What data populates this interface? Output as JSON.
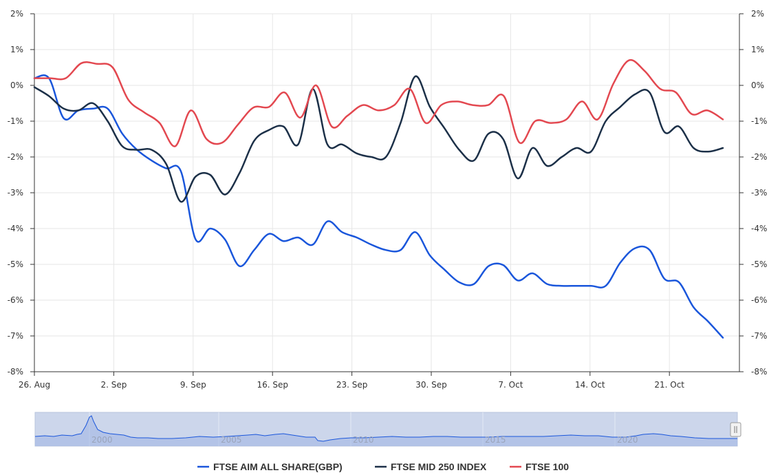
{
  "chart_data": {
    "type": "line",
    "x_tick_labels": [
      "26. Aug",
      "2. Sep",
      "9. Sep",
      "16. Sep",
      "23. Sep",
      "30. Sep",
      "7. Oct",
      "14. Oct",
      "21. Oct"
    ],
    "y_tick_labels": [
      "2%",
      "1%",
      "0%",
      "-1%",
      "-2%",
      "-3%",
      "-4%",
      "-5%",
      "-6%",
      "-7%",
      "-8%"
    ],
    "ylim": [
      -8,
      2
    ],
    "grid": true,
    "legend_position": "bottom-center",
    "series": [
      {
        "name": "FTSE AIM ALL SHARE(GBP)",
        "color": "#1a56db",
        "values": [
          0.2,
          0.2,
          -0.92,
          -0.7,
          -0.65,
          -0.65,
          -1.35,
          -1.8,
          -2.1,
          -2.32,
          -2.4,
          -4.3,
          -4.0,
          -4.3,
          -5.05,
          -4.6,
          -4.15,
          -4.35,
          -4.25,
          -4.45,
          -3.8,
          -4.1,
          -4.25,
          -4.45,
          -4.6,
          -4.6,
          -4.1,
          -4.75,
          -5.15,
          -5.5,
          -5.55,
          -5.05,
          -5.02,
          -5.45,
          -5.25,
          -5.55,
          -5.6,
          -5.6,
          -5.6,
          -5.6,
          -4.95,
          -4.55,
          -4.6,
          -5.4,
          -5.5,
          -6.2,
          -6.6,
          -7.05
        ]
      },
      {
        "name": "FTSE MID 250 INDEX",
        "color": "#1c3048",
        "values": [
          -0.05,
          -0.3,
          -0.65,
          -0.7,
          -0.5,
          -1.0,
          -1.7,
          -1.8,
          -1.8,
          -2.2,
          -3.25,
          -2.55,
          -2.5,
          -3.05,
          -2.45,
          -1.55,
          -1.25,
          -1.15,
          -1.65,
          -0.1,
          -1.65,
          -1.65,
          -1.9,
          -2.0,
          -2.0,
          -1.05,
          0.25,
          -0.6,
          -1.2,
          -1.8,
          -2.1,
          -1.35,
          -1.5,
          -2.6,
          -1.75,
          -2.25,
          -2.0,
          -1.75,
          -1.85,
          -1.0,
          -0.6,
          -0.25,
          -0.2,
          -1.3,
          -1.15,
          -1.75,
          -1.85,
          -1.75
        ]
      },
      {
        "name": "FTSE 100",
        "color": "#e34850",
        "values": [
          0.2,
          0.2,
          0.2,
          0.62,
          0.6,
          0.5,
          -0.4,
          -0.75,
          -1.05,
          -1.7,
          -0.7,
          -1.5,
          -1.6,
          -1.1,
          -0.62,
          -0.6,
          -0.2,
          -0.9,
          0.0,
          -1.15,
          -0.85,
          -0.55,
          -0.7,
          -0.55,
          -0.1,
          -1.05,
          -0.55,
          -0.45,
          -0.55,
          -0.55,
          -0.3,
          -1.6,
          -1.0,
          -1.05,
          -0.95,
          -0.45,
          -0.95,
          0.05,
          0.7,
          0.4,
          -0.1,
          -0.2,
          -0.8,
          -0.7,
          -0.95
        ]
      }
    ],
    "navigator": {
      "year_labels": [
        "2000",
        "2005",
        "2010",
        "2015",
        "2020"
      ]
    }
  }
}
